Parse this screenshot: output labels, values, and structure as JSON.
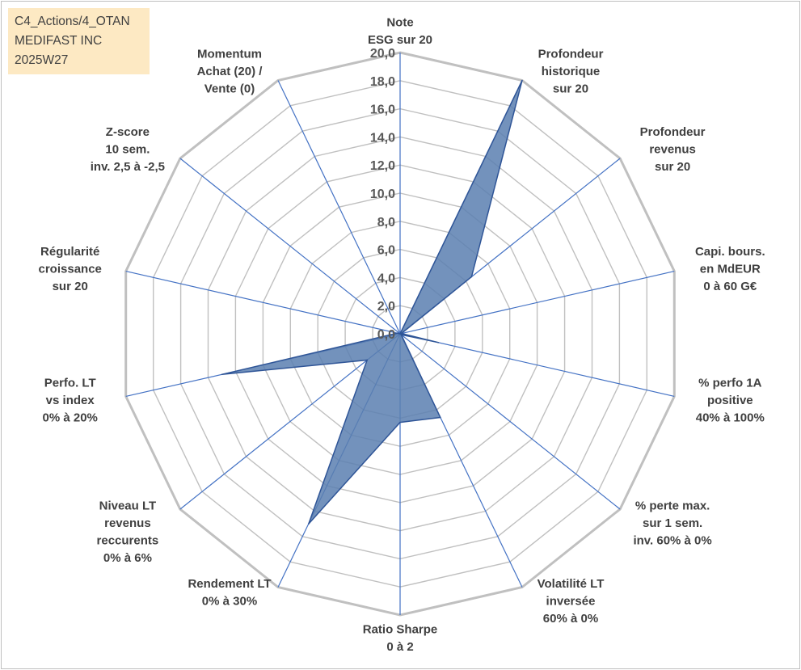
{
  "info": {
    "line1": "C4_Actions/4_OTAN",
    "line2": "MEDIFAST INC",
    "line3": "2025W27"
  },
  "chart_data": {
    "type": "radar",
    "title": "",
    "rmin": 0,
    "rmax": 20,
    "tick_step": 2,
    "tick_labels": [
      "0,0",
      "2,0",
      "4,0",
      "6,0",
      "8,0",
      "10,0",
      "12,0",
      "14,0",
      "16,0",
      "18,0",
      "20,0"
    ],
    "grid": true,
    "axes": [
      {
        "label_lines": [
          "Note",
          "ESG sur 20"
        ]
      },
      {
        "label_lines": [
          "Profondeur",
          "historique",
          "sur 20"
        ]
      },
      {
        "label_lines": [
          "Profondeur",
          "revenus",
          "sur 20"
        ]
      },
      {
        "label_lines": [
          "Capi. bours.",
          "en MdEUR",
          "0 à 60 G€"
        ]
      },
      {
        "label_lines": [
          "% perfo 1A",
          "positive",
          "40% à 100%"
        ]
      },
      {
        "label_lines": [
          "% perte max.",
          "sur 1 sem.",
          "inv. 60% à 0%"
        ]
      },
      {
        "label_lines": [
          "Volatilité LT",
          "inversée",
          "60% à 0%"
        ]
      },
      {
        "label_lines": [
          "Ratio Sharpe",
          "0 à 2"
        ]
      },
      {
        "label_lines": [
          "Rendement LT",
          "0% à 30%"
        ]
      },
      {
        "label_lines": [
          "Niveau LT",
          "revenus",
          "reccurents",
          "0% à 6%"
        ]
      },
      {
        "label_lines": [
          "Perfo. LT",
          "vs index",
          "0% à 20%"
        ]
      },
      {
        "label_lines": [
          "Régularité",
          "croissance",
          "sur 20"
        ]
      },
      {
        "label_lines": [
          "Z-score",
          "10 sem.",
          "inv. 2,5 à -2,5"
        ]
      },
      {
        "label_lines": [
          "Momentum",
          "Achat (20) /",
          "Vente (0)"
        ]
      }
    ],
    "series": [
      {
        "values": [
          0.0,
          20.0,
          6.5,
          0.1,
          2.8,
          0.1,
          6.6,
          6.3,
          15.0,
          3.0,
          13.0,
          0.2,
          0.0,
          0.0
        ],
        "color": "#5b7fb0",
        "stroke": "#2f5597"
      }
    ],
    "colors": {
      "grid": "#c0c0c0",
      "spoke": "#4472c4",
      "fill": "#5b7fb0"
    }
  }
}
